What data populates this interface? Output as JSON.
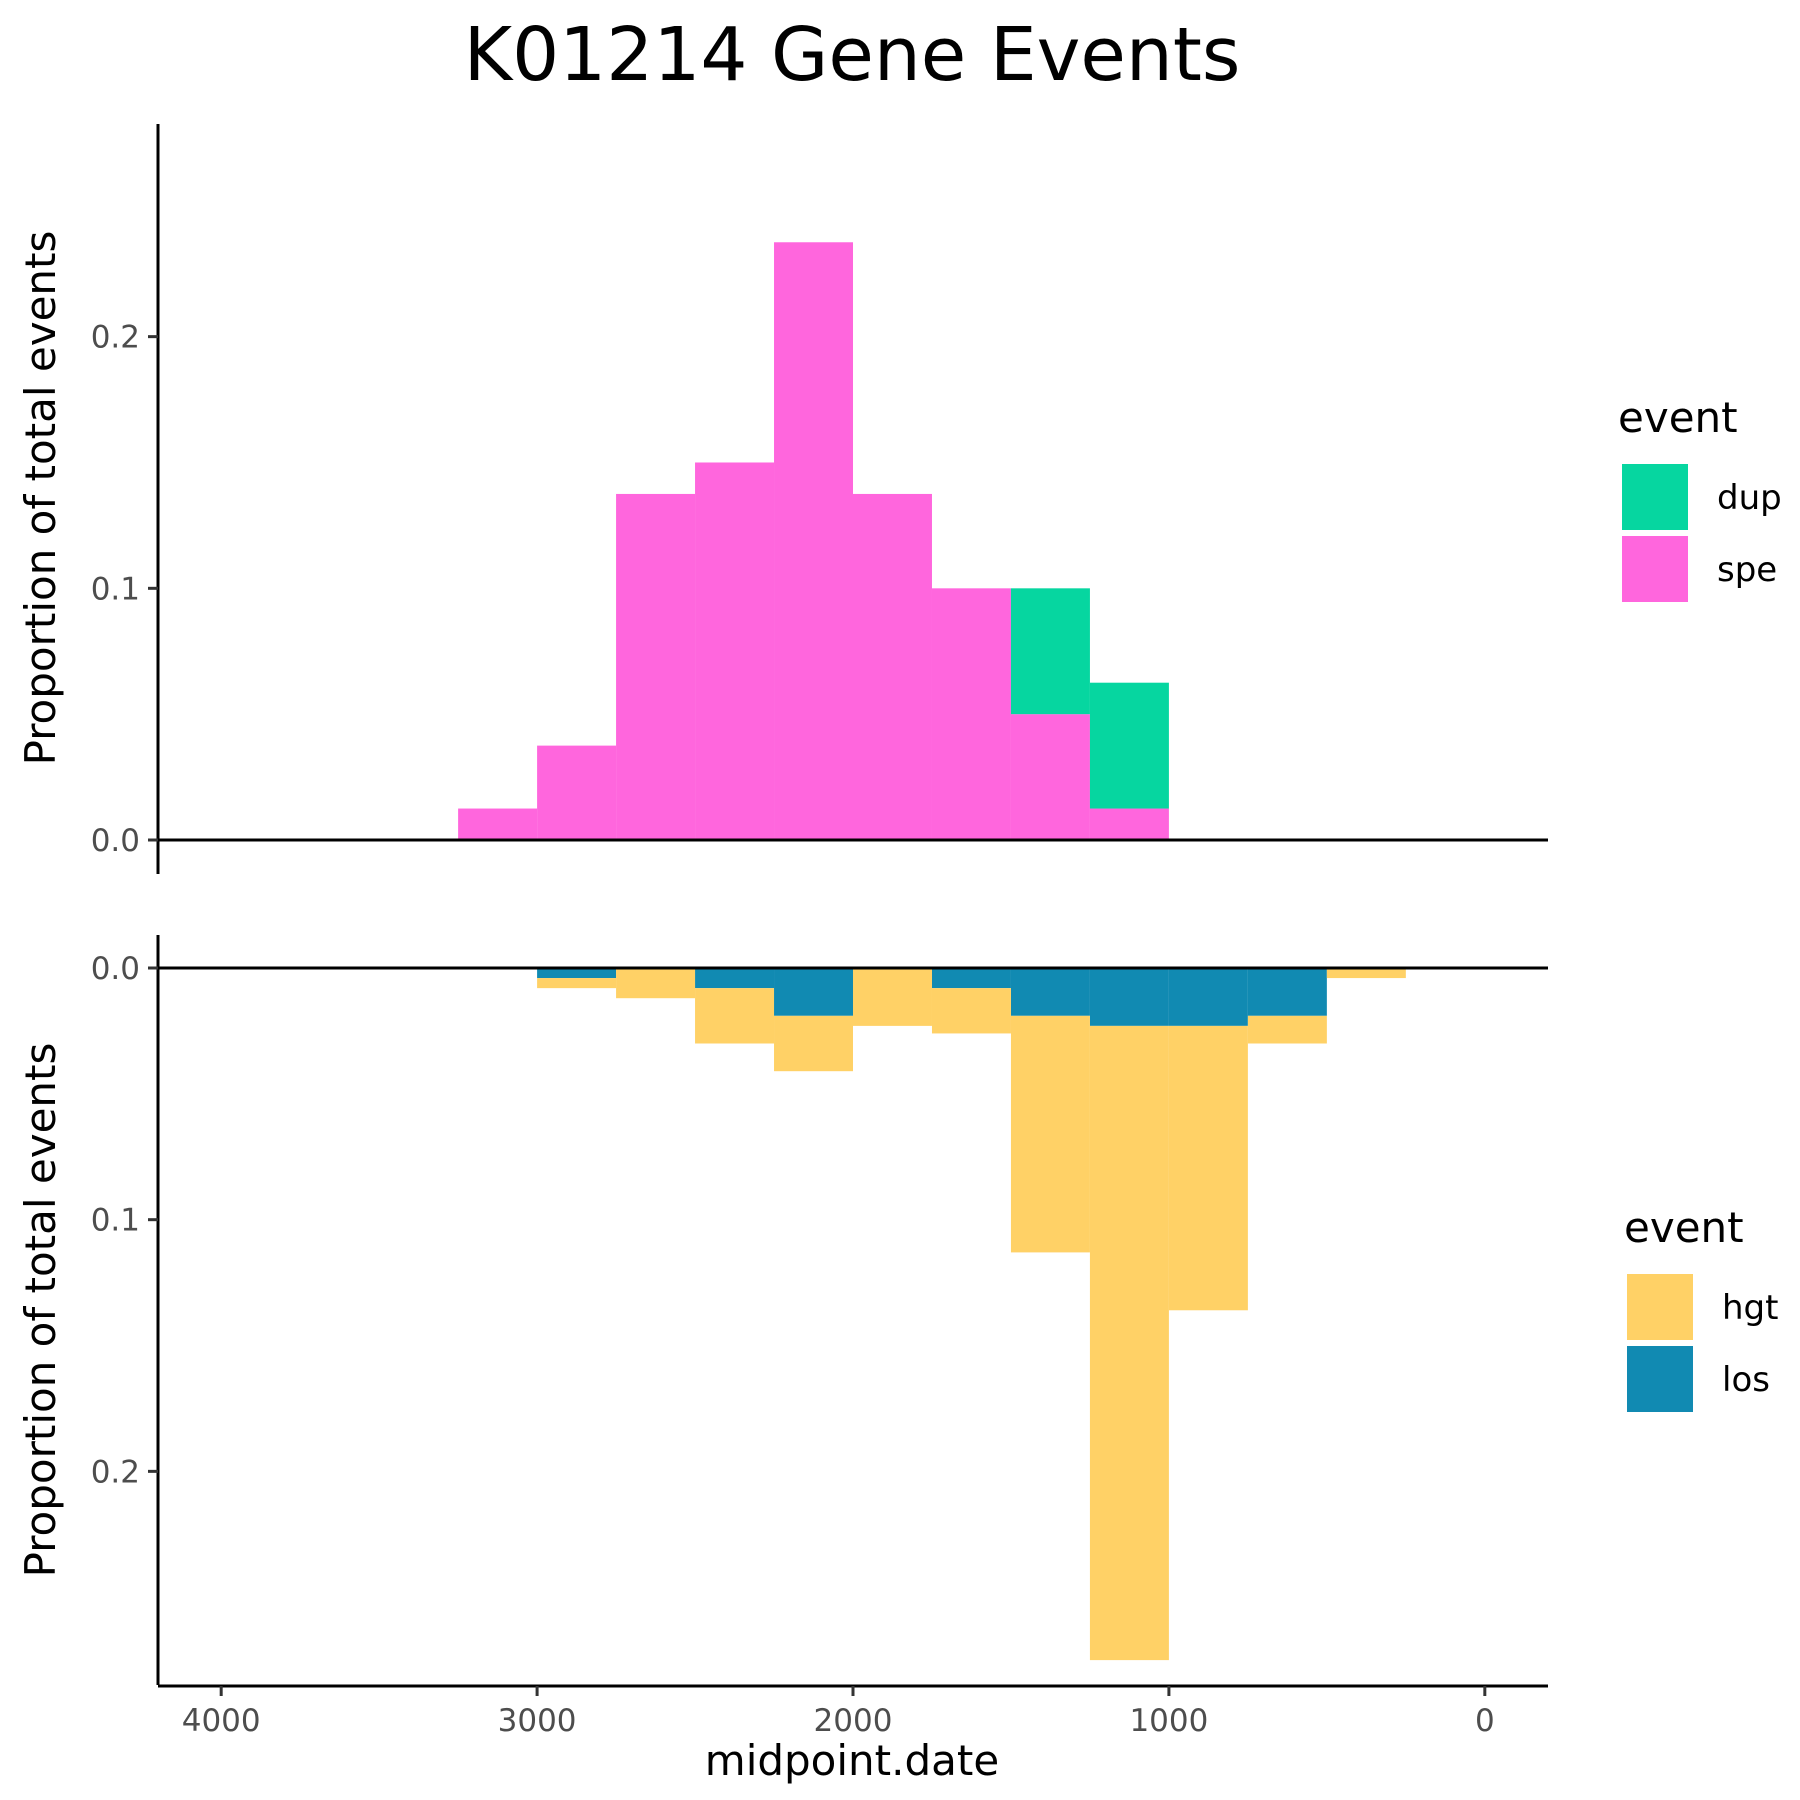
{
  "chart_data": {
    "type": "bar",
    "stacked": true,
    "title": "K01214 Gene Events",
    "xlabel": "midpoint.date",
    "x_reversed": true,
    "xlim": [
      4200,
      -200
    ],
    "x_ticks": [
      4000,
      3000,
      2000,
      1000,
      0
    ],
    "x_tick_labels": [
      "4000",
      "3000",
      "2000",
      "1000",
      "0"
    ],
    "bin_edges": [
      3250,
      3000,
      2750,
      2500,
      2250,
      2000,
      1750,
      1500,
      1250,
      1000,
      750,
      500,
      250
    ],
    "grid": false,
    "panels": [
      {
        "ylabel": "Proportion of total events",
        "direction": "up",
        "ylim": [
          -0.013,
          0.285
        ],
        "y_ticks": [
          0.0,
          0.1,
          0.2
        ],
        "y_tick_labels": [
          "0.0",
          "0.1",
          "0.2"
        ],
        "legend_title": "event",
        "legend_position": "right",
        "series": [
          {
            "name": "spe",
            "color": "#FF66DD",
            "values": [
              0.0125,
              0.0375,
              0.1375,
              0.15,
              0.2375,
              0.1375,
              0.1,
              0.05,
              0.0125,
              0,
              0,
              0
            ]
          },
          {
            "name": "dup",
            "color": "#06D6A0",
            "values": [
              0,
              0,
              0,
              0,
              0,
              0,
              0,
              0.05,
              0.05,
              0,
              0,
              0
            ]
          }
        ],
        "legend_items": [
          "dup",
          "spe"
        ]
      },
      {
        "ylabel": "Proportion of total events",
        "direction": "down",
        "ylim": [
          -0.013,
          0.285
        ],
        "y_ticks": [
          0.0,
          0.1,
          0.2
        ],
        "y_tick_labels": [
          "0.0",
          "0.1",
          "0.2"
        ],
        "legend_title": "event",
        "legend_position": "right",
        "series": [
          {
            "name": "los",
            "color": "#118AB2",
            "values": [
              0,
              0.004,
              0,
              0.008,
              0.019,
              0,
              0.008,
              0.019,
              0.023,
              0.023,
              0.019,
              0
            ]
          },
          {
            "name": "hgt",
            "color": "#FFD166",
            "values": [
              0,
              0.004,
              0.012,
              0.022,
              0.022,
              0.023,
              0.018,
              0.094,
              0.252,
              0.113,
              0.011,
              0.004
            ]
          }
        ],
        "legend_items": [
          "hgt",
          "los"
        ]
      }
    ]
  }
}
